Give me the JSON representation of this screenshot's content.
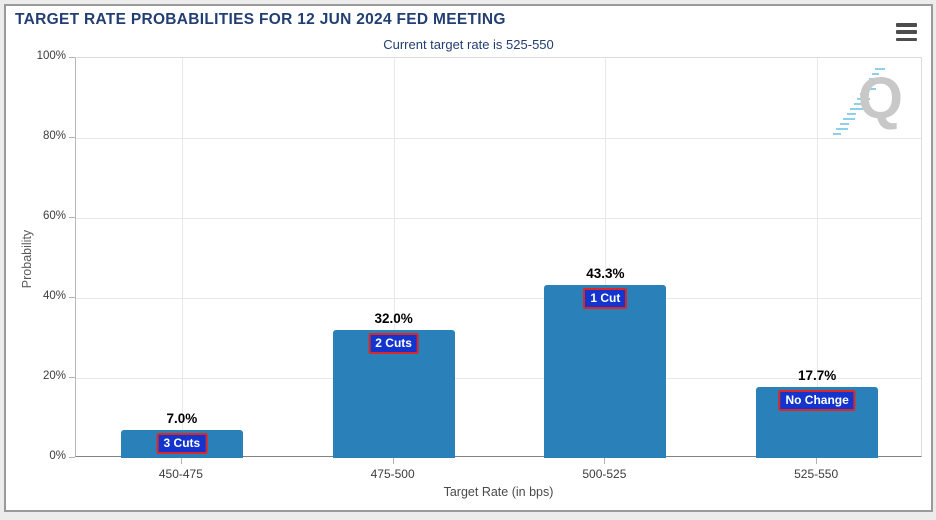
{
  "header": {
    "title": "TARGET RATE PROBABILITIES FOR 12 JUN 2024 FED MEETING",
    "subtitle": "Current target rate is 525-550",
    "menu_icon": "hamburger-menu-icon"
  },
  "watermark": {
    "letter": "Q"
  },
  "colors": {
    "title_text": "#233e73",
    "bar_fill": "#2a80b9",
    "badge_bg": "#1435cd",
    "badge_border": "#dd2727",
    "gridline": "#e8e8e8",
    "axis_line": "#828282"
  },
  "chart_data": {
    "type": "bar",
    "title": "TARGET RATE PROBABILITIES FOR 12 JUN 2024 FED MEETING",
    "subtitle": "Current target rate is 525-550",
    "xlabel": "Target Rate (in bps)",
    "ylabel": "Probability",
    "categories": [
      "450-475",
      "475-500",
      "500-525",
      "525-550"
    ],
    "values": [
      7.0,
      32.0,
      43.3,
      17.7
    ],
    "value_labels": [
      "7.0%",
      "32.0%",
      "43.3%",
      "17.7%"
    ],
    "bar_tags": [
      "3 Cuts",
      "2 Cuts",
      "1 Cut",
      "No Change"
    ],
    "ylim": [
      0,
      100
    ],
    "y_ticks": [
      "0%",
      "20%",
      "40%",
      "60%",
      "80%",
      "100%"
    ],
    "grid": true,
    "legend": false
  }
}
